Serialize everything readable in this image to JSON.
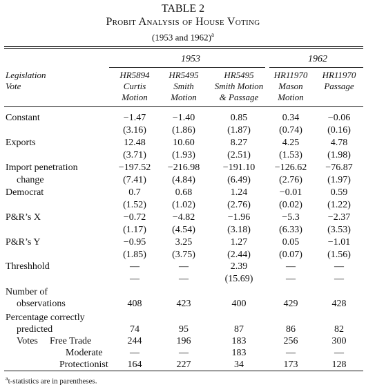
{
  "title": {
    "line1": "TABLE 2",
    "line2": "Probit Analysis of House Voting",
    "line3": "(1953 and 1962)",
    "line3_sup": "a"
  },
  "column_groups": [
    "1953",
    "1962"
  ],
  "stub_header": [
    "Legislation",
    "Vote"
  ],
  "columns": [
    [
      "HR5894",
      "Curtis",
      "Motion"
    ],
    [
      "HR5495",
      "Smith",
      "Motion"
    ],
    [
      "HR5495",
      "Smith Motion",
      "& Passage"
    ],
    [
      "HR11970",
      "Mason",
      "Motion"
    ],
    [
      "HR11970",
      "Passage",
      ""
    ]
  ],
  "rows": [
    {
      "label": "Constant",
      "coef": [
        "−1.47",
        "−1.40",
        "0.85",
        "0.34",
        "−0.06"
      ],
      "t": [
        "(3.16)",
        "(1.86)",
        "(1.87)",
        "(0.74)",
        "(0.16)"
      ]
    },
    {
      "label": "Exports",
      "coef": [
        "12.48",
        "10.60",
        "8.27",
        "4.25",
        "4.78"
      ],
      "t": [
        "(3.71)",
        "(1.93)",
        "(2.51)",
        "(1.53)",
        "(1.98)"
      ]
    },
    {
      "label": "Import penetration",
      "label2": "change",
      "coef": [
        "−197.52",
        "−216.98",
        "−191.10",
        "−126.62",
        "−76.87"
      ],
      "t": [
        "(7.41)",
        "(4.84)",
        "(6.49)",
        "(2.76)",
        "(1.97)"
      ]
    },
    {
      "label": "Democrat",
      "coef": [
        "0.7",
        "0.68",
        "1.24",
        "−0.01",
        "0.59"
      ],
      "t": [
        "(1.52)",
        "(1.02)",
        "(2.76)",
        "(0.02)",
        "(1.22)"
      ]
    },
    {
      "label": "P&R’s X",
      "coef": [
        "−0.72",
        "−4.82",
        "−1.96",
        "−5.3",
        "−2.37"
      ],
      "t": [
        "(1.17)",
        "(4.54)",
        "(3.18)",
        "(6.33)",
        "(3.53)"
      ]
    },
    {
      "label": "P&R’s Y",
      "coef": [
        "−0.95",
        "3.25",
        "1.27",
        "0.05",
        "−1.01"
      ],
      "t": [
        "(1.85)",
        "(3.75)",
        "(2.44)",
        "(0.07)",
        "(1.56)"
      ]
    },
    {
      "label": "Threshhold",
      "coef": [
        "—",
        "—",
        "2.39",
        "—",
        "—"
      ],
      "t": [
        "—",
        "—",
        "(15.69)",
        "—",
        "—"
      ]
    }
  ],
  "observations": {
    "label1": "Number of",
    "label2": "observations",
    "values": [
      "408",
      "423",
      "400",
      "429",
      "428"
    ]
  },
  "percent_correct": {
    "label1": "Percentage correctly",
    "label2": "predicted",
    "values": [
      "74",
      "95",
      "87",
      "86",
      "82"
    ]
  },
  "votes": {
    "label": "Votes",
    "free_trade": {
      "label": "Free Trade",
      "values": [
        "244",
        "196",
        "183",
        "256",
        "300"
      ]
    },
    "moderate": {
      "label": "Moderate",
      "values": [
        "—",
        "—",
        "183",
        "—",
        "—"
      ]
    },
    "protectionist": {
      "label": "Protectionist",
      "values": [
        "164",
        "227",
        "34",
        "173",
        "128"
      ]
    }
  },
  "footnote": {
    "sup": "a",
    "text": "t-statistics are in parentheses."
  }
}
